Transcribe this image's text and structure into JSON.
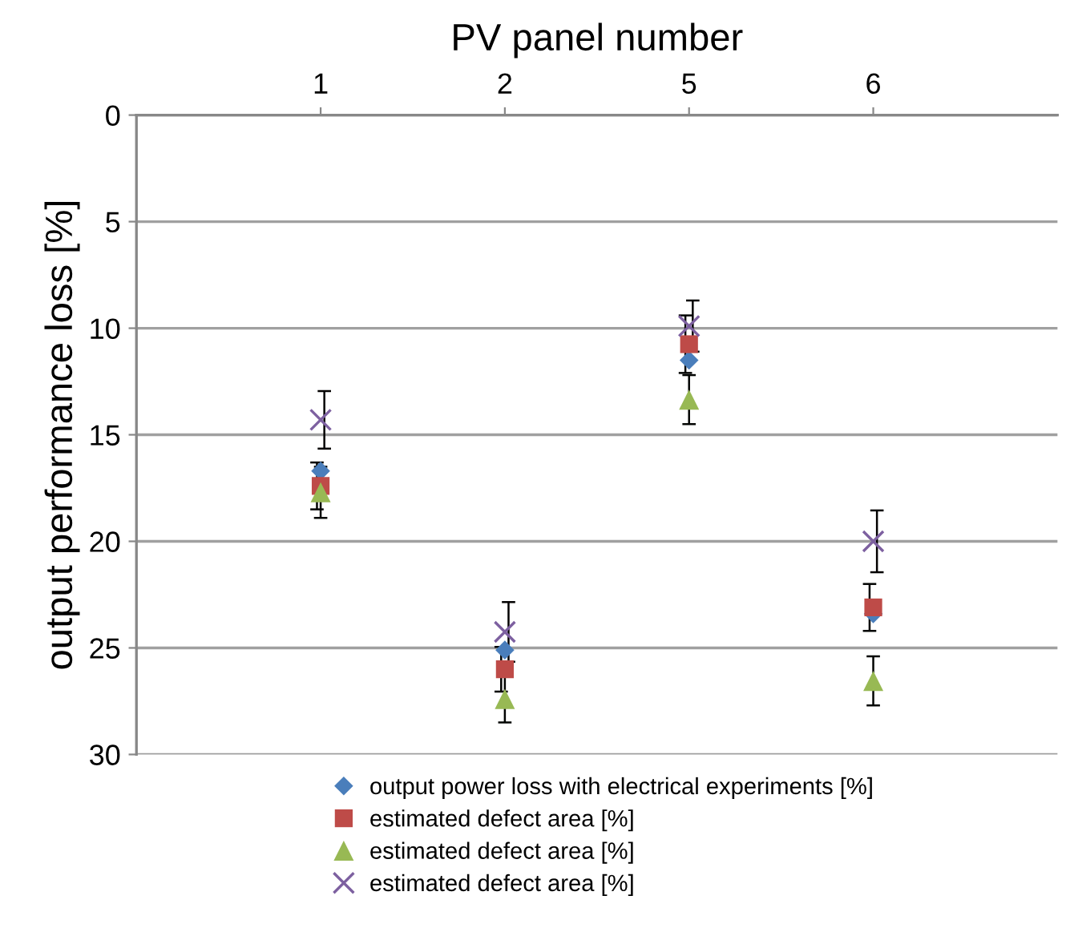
{
  "chart_data": {
    "type": "scatter",
    "xlabel": "PV panel number",
    "ylabel": "output performance loss [%]",
    "categories": [
      "1",
      "2",
      "5",
      "6"
    ],
    "ylim": [
      30,
      0
    ],
    "yticks": [
      0,
      5,
      10,
      15,
      20,
      25,
      30
    ],
    "grid": "y",
    "legend": "bottom",
    "series": [
      {
        "name": "output power loss with electrical experiments [%]",
        "color": "#4a7ebb",
        "marker": "diamond",
        "values": [
          16.7,
          25.1,
          11.5,
          23.4
        ]
      },
      {
        "name": "estimated defect area [%]",
        "color": "#be4b48",
        "marker": "square",
        "values": [
          17.4,
          26.0,
          10.75,
          23.1
        ],
        "errors": [
          1.1,
          1.05,
          1.35,
          1.1
        ]
      },
      {
        "name": "estimated defect area [%]",
        "color": "#98b954",
        "marker": "triangle",
        "values": [
          17.7,
          27.4,
          13.35,
          26.55
        ],
        "errors": [
          1.2,
          1.1,
          1.15,
          1.15
        ]
      },
      {
        "name": "estimated defect area [%]",
        "color": "#7d60a0",
        "marker": "cross",
        "values": [
          14.3,
          24.25,
          9.9,
          20.0
        ],
        "errors": [
          1.35,
          1.4,
          1.2,
          1.45
        ]
      }
    ]
  }
}
